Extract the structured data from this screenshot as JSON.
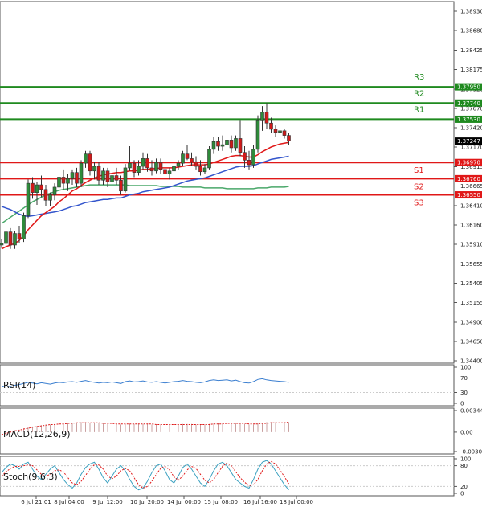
{
  "colors": {
    "up": "#2e8b3a",
    "down": "#d11a1a",
    "resistance": "#1f8a1f",
    "support": "#e01818",
    "ma_fast": "#e01818",
    "ma_mid": "#3355cc",
    "ma_slow": "#4aa86a",
    "rsi": "#3b7fd0",
    "macd_hist": "#c9a0a0",
    "macd_signal": "#e01818",
    "stoch_k": "#3aa0c0",
    "stoch_d": "#e01818",
    "grid": "#cccccc",
    "price_box": "#000000"
  },
  "chart_data": [
    {
      "type": "candlestick",
      "pane": "price",
      "ylim": [
        1.344,
        1.3893
      ],
      "y_ticks": [
        "1.38930",
        "1.38680",
        "1.38425",
        "1.38175",
        "1.37920",
        "1.37670",
        "1.37420",
        "1.37170",
        "1.36915",
        "1.36665",
        "1.36410",
        "1.36160",
        "1.35910",
        "1.35655",
        "1.35405",
        "1.35155",
        "1.34900",
        "1.34650",
        "1.34400"
      ],
      "x_ticks": [
        "6 Jul 21:01",
        "8 Jul 04:00",
        "9 Jul 12:00",
        "10 Jul 20:00",
        "14 Jul 00:00",
        "15 Jul 08:00",
        "16 Jul 16:00",
        "18 Jul 00:00"
      ],
      "current_price": "1.37247",
      "levels": [
        {
          "name": "R3",
          "value": 1.3795,
          "label": "1.37950",
          "kind": "resistance"
        },
        {
          "name": "R2",
          "value": 1.3774,
          "label": "1.37740",
          "kind": "resistance"
        },
        {
          "name": "R1",
          "value": 1.3753,
          "label": "1.37530",
          "kind": "resistance"
        },
        {
          "name": "S1",
          "value": 1.3697,
          "label": "1.36970",
          "kind": "support"
        },
        {
          "name": "S2",
          "value": 1.3676,
          "label": "1.36760",
          "kind": "support"
        },
        {
          "name": "S3",
          "value": 1.3655,
          "label": "1.36550",
          "kind": "support"
        }
      ],
      "candles": [
        [
          1.359,
          1.3598,
          1.3586,
          1.3592
        ],
        [
          1.3592,
          1.3612,
          1.3588,
          1.3607
        ],
        [
          1.3607,
          1.3612,
          1.3585,
          1.359
        ],
        [
          1.359,
          1.3608,
          1.3585,
          1.3605
        ],
        [
          1.3605,
          1.3615,
          1.3592,
          1.3598
        ],
        [
          1.3598,
          1.3632,
          1.3594,
          1.3628
        ],
        [
          1.3628,
          1.3675,
          1.3625,
          1.367
        ],
        [
          1.367,
          1.3678,
          1.365,
          1.3658
        ],
        [
          1.3658,
          1.3672,
          1.3642,
          1.3668
        ],
        [
          1.3668,
          1.368,
          1.3652,
          1.3662
        ],
        [
          1.3662,
          1.3668,
          1.364,
          1.3648
        ],
        [
          1.3648,
          1.3658,
          1.364,
          1.3655
        ],
        [
          1.3655,
          1.367,
          1.3648,
          1.3665
        ],
        [
          1.3665,
          1.3685,
          1.365,
          1.3678
        ],
        [
          1.3678,
          1.3688,
          1.3662,
          1.367
        ],
        [
          1.367,
          1.3682,
          1.366,
          1.3676
        ],
        [
          1.3676,
          1.3688,
          1.3668,
          1.3684
        ],
        [
          1.3684,
          1.369,
          1.3665,
          1.367
        ],
        [
          1.367,
          1.37,
          1.3665,
          1.3696
        ],
        [
          1.3696,
          1.3712,
          1.369,
          1.3708
        ],
        [
          1.3708,
          1.3712,
          1.368,
          1.3686
        ],
        [
          1.3686,
          1.3698,
          1.3675,
          1.3692
        ],
        [
          1.3692,
          1.3698,
          1.3668,
          1.3674
        ],
        [
          1.3674,
          1.369,
          1.3668,
          1.3686
        ],
        [
          1.3686,
          1.369,
          1.3665,
          1.3672
        ],
        [
          1.3672,
          1.3686,
          1.366,
          1.368
        ],
        [
          1.368,
          1.369,
          1.3668,
          1.3674
        ],
        [
          1.3674,
          1.368,
          1.3655,
          1.366
        ],
        [
          1.366,
          1.3695,
          1.3658,
          1.369
        ],
        [
          1.369,
          1.3718,
          1.3686,
          1.3696
        ],
        [
          1.3696,
          1.37,
          1.3678,
          1.3684
        ],
        [
          1.3684,
          1.37,
          1.368,
          1.3692
        ],
        [
          1.3692,
          1.371,
          1.3688,
          1.3702
        ],
        [
          1.3702,
          1.3708,
          1.3685,
          1.369
        ],
        [
          1.369,
          1.37,
          1.368,
          1.3686
        ],
        [
          1.3686,
          1.3702,
          1.3683,
          1.3697
        ],
        [
          1.3697,
          1.3702,
          1.3682,
          1.3688
        ],
        [
          1.3688,
          1.3694,
          1.3672,
          1.3682
        ],
        [
          1.3682,
          1.369,
          1.3675,
          1.3686
        ],
        [
          1.3686,
          1.3698,
          1.368,
          1.3692
        ],
        [
          1.3692,
          1.37,
          1.3688,
          1.3696
        ],
        [
          1.3696,
          1.3712,
          1.3692,
          1.3708
        ],
        [
          1.3708,
          1.372,
          1.37,
          1.3702
        ],
        [
          1.3702,
          1.371,
          1.3692,
          1.3698
        ],
        [
          1.3698,
          1.3705,
          1.3688,
          1.3692
        ],
        [
          1.3692,
          1.37,
          1.368,
          1.3685
        ],
        [
          1.3685,
          1.3695,
          1.3682,
          1.369
        ],
        [
          1.369,
          1.3718,
          1.3688,
          1.3714
        ],
        [
          1.3714,
          1.373,
          1.3708,
          1.3724
        ],
        [
          1.3724,
          1.373,
          1.3712,
          1.3718
        ],
        [
          1.3718,
          1.3732,
          1.3712,
          1.372
        ],
        [
          1.372,
          1.3728,
          1.3714,
          1.3726
        ],
        [
          1.3726,
          1.3732,
          1.371,
          1.3716
        ],
        [
          1.3716,
          1.3732,
          1.3712,
          1.3728
        ],
        [
          1.3728,
          1.3752,
          1.3705,
          1.371
        ],
        [
          1.371,
          1.3718,
          1.369,
          1.37
        ],
        [
          1.37,
          1.3712,
          1.3688,
          1.3694
        ],
        [
          1.3694,
          1.372,
          1.369,
          1.3714
        ],
        [
          1.3714,
          1.3758,
          1.371,
          1.3752
        ],
        [
          1.3752,
          1.377,
          1.3738,
          1.3762
        ],
        [
          1.3762,
          1.3774,
          1.374,
          1.3748
        ],
        [
          1.3748,
          1.3755,
          1.3735,
          1.374
        ],
        [
          1.374,
          1.3745,
          1.373,
          1.3736
        ],
        [
          1.3736,
          1.3742,
          1.3725,
          1.3738
        ],
        [
          1.3738,
          1.374,
          1.3728,
          1.3732
        ],
        [
          1.3732,
          1.3735,
          1.372,
          1.3725
        ]
      ],
      "ma_fast": [
        1.3585,
        1.3588,
        1.359,
        1.3592,
        1.3596,
        1.3602,
        1.361,
        1.3616,
        1.3622,
        1.3628,
        1.3632,
        1.3636,
        1.364,
        1.3646,
        1.365,
        1.3655,
        1.366,
        1.3663,
        1.3667,
        1.3671,
        1.3674,
        1.3677,
        1.3679,
        1.3681,
        1.3682,
        1.3683,
        1.3684,
        1.3684,
        1.3685,
        1.3686,
        1.3686,
        1.3687,
        1.3688,
        1.3688,
        1.3689,
        1.3689,
        1.369,
        1.369,
        1.369,
        1.369,
        1.3691,
        1.3692,
        1.3693,
        1.3694,
        1.3694,
        1.3694,
        1.3694,
        1.3695,
        1.3697,
        1.3699,
        1.3701,
        1.3703,
        1.3705,
        1.3706,
        1.3706,
        1.3705,
        1.3704,
        1.3704,
        1.3707,
        1.3711,
        1.3714,
        1.3717,
        1.3719,
        1.3721,
        1.3722,
        1.3723
      ],
      "ma_mid": [
        1.364,
        1.3638,
        1.3636,
        1.3633,
        1.363,
        1.3628,
        1.3627,
        1.3628,
        1.3629,
        1.363,
        1.3631,
        1.3632,
        1.3633,
        1.3634,
        1.3636,
        1.3638,
        1.364,
        1.3641,
        1.3643,
        1.3645,
        1.3646,
        1.3647,
        1.3648,
        1.3649,
        1.3649,
        1.365,
        1.3651,
        1.3651,
        1.3653,
        1.3655,
        1.3656,
        1.3657,
        1.3659,
        1.366,
        1.3661,
        1.3662,
        1.3663,
        1.3664,
        1.3665,
        1.3667,
        1.3669,
        1.3671,
        1.3673,
        1.3674,
        1.3675,
        1.3676,
        1.3677,
        1.3679,
        1.3681,
        1.3683,
        1.3685,
        1.3687,
        1.3689,
        1.3691,
        1.3692,
        1.3692,
        1.3692,
        1.3693,
        1.3695,
        1.3697,
        1.3699,
        1.3701,
        1.3702,
        1.3703,
        1.3704,
        1.3705
      ],
      "ma_slow": [
        1.3618,
        1.3622,
        1.3626,
        1.363,
        1.3634,
        1.3638,
        1.3642,
        1.3646,
        1.3649,
        1.3652,
        1.3655,
        1.3657,
        1.3659,
        1.3661,
        1.3662,
        1.3663,
        1.3664,
        1.3665,
        1.3666,
        1.3667,
        1.3668,
        1.3668,
        1.3668,
        1.3668,
        1.3668,
        1.3668,
        1.3668,
        1.3668,
        1.3668,
        1.3667,
        1.3667,
        1.3667,
        1.3667,
        1.3667,
        1.3667,
        1.3667,
        1.3666,
        1.3666,
        1.3666,
        1.3666,
        1.3666,
        1.3665,
        1.3665,
        1.3665,
        1.3665,
        1.3665,
        1.3664,
        1.3664,
        1.3664,
        1.3664,
        1.3664,
        1.3663,
        1.3663,
        1.3663,
        1.3663,
        1.3663,
        1.3663,
        1.3663,
        1.3664,
        1.3664,
        1.3664,
        1.3665,
        1.3665,
        1.3665,
        1.3665,
        1.3666
      ]
    },
    {
      "type": "line",
      "pane": "rsi",
      "title": "RSI(14)",
      "ylim": [
        0,
        100
      ],
      "y_ticks": [
        "100",
        "70",
        "30",
        "0"
      ],
      "values": [
        45,
        48,
        46,
        50,
        52,
        55,
        58,
        56,
        54,
        57,
        55,
        53,
        56,
        58,
        57,
        59,
        60,
        58,
        61,
        63,
        60,
        58,
        56,
        58,
        57,
        59,
        57,
        55,
        60,
        62,
        59,
        60,
        62,
        59,
        58,
        60,
        58,
        56,
        58,
        60,
        61,
        63,
        61,
        60,
        58,
        57,
        59,
        63,
        65,
        63,
        64,
        65,
        62,
        64,
        60,
        57,
        56,
        60,
        66,
        68,
        65,
        63,
        62,
        61,
        60,
        58
      ]
    },
    {
      "type": "bar",
      "pane": "macd",
      "title": "MACD(12,26,9)",
      "ylim": [
        -0.00308,
        0.00344
      ],
      "y_ticks": [
        "0.00344",
        "0.00",
        "-0.00308"
      ],
      "hist": [
        0.0,
        0.0001,
        0.0002,
        0.0003,
        0.0004,
        0.0006,
        0.0008,
        0.0009,
        0.001,
        0.0011,
        0.0012,
        0.0012,
        0.0013,
        0.0014,
        0.0014,
        0.0015,
        0.0015,
        0.0015,
        0.0016,
        0.0016,
        0.0015,
        0.0015,
        0.0014,
        0.0014,
        0.0013,
        0.0013,
        0.0013,
        0.0012,
        0.0013,
        0.0013,
        0.0013,
        0.0013,
        0.0013,
        0.0013,
        0.0012,
        0.0012,
        0.0012,
        0.0012,
        0.0012,
        0.0012,
        0.0012,
        0.0013,
        0.0013,
        0.0013,
        0.0012,
        0.0012,
        0.0012,
        0.0013,
        0.0014,
        0.0014,
        0.0014,
        0.0014,
        0.0014,
        0.0014,
        0.0014,
        0.0013,
        0.0012,
        0.0012,
        0.0014,
        0.0015,
        0.0016,
        0.0016,
        0.0016,
        0.0016,
        0.0016,
        0.0016
      ],
      "signal": [
        -0.0004,
        -0.0002,
        0.0,
        0.0002,
        0.0003,
        0.0005,
        0.0006,
        0.0008,
        0.0009,
        0.001,
        0.0011,
        0.0012,
        0.0012,
        0.0013,
        0.0013,
        0.0014,
        0.0014,
        0.0015,
        0.0015,
        0.0015,
        0.0015,
        0.0015,
        0.0015,
        0.0014,
        0.0014,
        0.0014,
        0.0013,
        0.0013,
        0.0013,
        0.0013,
        0.0013,
        0.0013,
        0.0013,
        0.0013,
        0.0013,
        0.0012,
        0.0012,
        0.0012,
        0.0012,
        0.0012,
        0.0012,
        0.0012,
        0.0012,
        0.0012,
        0.0012,
        0.0012,
        0.0012,
        0.0012,
        0.0013,
        0.0013,
        0.0013,
        0.0014,
        0.0014,
        0.0014,
        0.0014,
        0.0014,
        0.0013,
        0.0013,
        0.0013,
        0.0014,
        0.0014,
        0.0015,
        0.0015,
        0.0015,
        0.0015,
        0.0016
      ]
    },
    {
      "type": "line",
      "pane": "stoch",
      "title": "Stoch(9,6,3)",
      "ylim": [
        0,
        100
      ],
      "y_ticks": [
        "100",
        "80",
        "20",
        "0"
      ],
      "k": [
        60,
        75,
        85,
        80,
        70,
        85,
        90,
        70,
        50,
        40,
        55,
        70,
        80,
        60,
        40,
        25,
        15,
        30,
        55,
        75,
        85,
        90,
        70,
        45,
        30,
        50,
        70,
        80,
        65,
        40,
        20,
        10,
        15,
        35,
        60,
        80,
        85,
        65,
        40,
        30,
        50,
        75,
        85,
        70,
        50,
        30,
        20,
        40,
        65,
        85,
        90,
        80,
        60,
        40,
        30,
        20,
        15,
        40,
        70,
        90,
        95,
        85,
        65,
        45,
        25,
        10
      ],
      "d": [
        50,
        62,
        72,
        78,
        78,
        80,
        82,
        80,
        68,
        55,
        50,
        55,
        65,
        68,
        62,
        45,
        30,
        25,
        35,
        52,
        70,
        83,
        82,
        70,
        50,
        42,
        50,
        65,
        72,
        65,
        45,
        25,
        15,
        20,
        35,
        55,
        72,
        78,
        68,
        48,
        38,
        50,
        68,
        78,
        72,
        55,
        38,
        30,
        40,
        60,
        78,
        88,
        80,
        62,
        45,
        32,
        22,
        25,
        40,
        65,
        85,
        92,
        85,
        68,
        48,
        28
      ]
    }
  ]
}
